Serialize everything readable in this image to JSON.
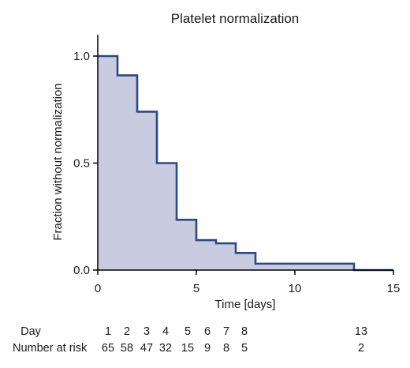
{
  "chart_data": {
    "type": "line",
    "title": "Platelet normalization",
    "xlabel": "Time [days]",
    "ylabel": "Fraction without normalization",
    "xlim": [
      0,
      15
    ],
    "ylim": [
      0,
      1.05
    ],
    "xticks": [
      0,
      5,
      10,
      15
    ],
    "yticks": [
      0.0,
      0.5,
      1.0
    ],
    "ytick_labels": [
      "0.0",
      "0.5",
      "1.0"
    ],
    "grid": false,
    "style": "step",
    "line_color": "#2b4a7e",
    "fill_color": "#c9cbe0",
    "series": [
      {
        "x": [
          0,
          1,
          2,
          3,
          4,
          5,
          6,
          7,
          8,
          13,
          15
        ],
        "y": [
          1.0,
          0.91,
          0.74,
          0.5,
          0.235,
          0.14,
          0.125,
          0.08,
          0.03,
          0.0,
          0.0
        ]
      }
    ],
    "risk_table": {
      "day_label": "Day",
      "risk_label": "Number at risk",
      "days": [
        "1",
        "2",
        "3",
        "4",
        "5",
        "6",
        "7",
        "8",
        "13"
      ],
      "at_risk": [
        "65",
        "58",
        "47",
        "32",
        "15",
        "9",
        "8",
        "5",
        "2"
      ]
    }
  }
}
